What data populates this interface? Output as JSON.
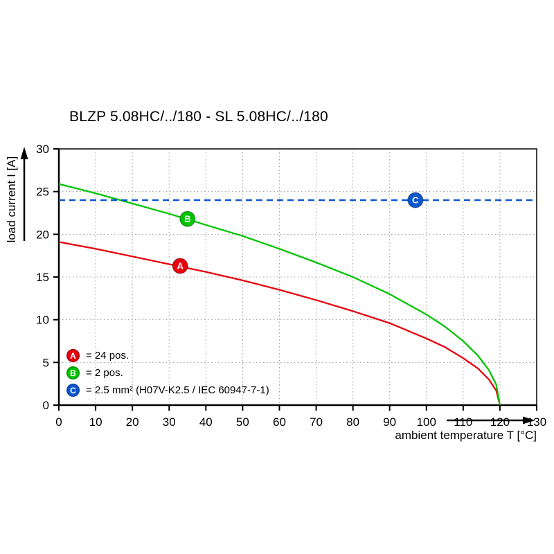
{
  "chart_data": {
    "type": "line",
    "title": "BLZP 5.08HC/../180 - SL 5.08HC/../180",
    "xlabel": "ambient temperature T [°C]",
    "ylabel": "load current I [A]",
    "xlim": [
      0,
      130
    ],
    "ylim": [
      0,
      30
    ],
    "xticks": [
      0,
      10,
      20,
      30,
      40,
      50,
      60,
      70,
      80,
      90,
      100,
      110,
      120,
      130
    ],
    "yticks": [
      0,
      5,
      10,
      15,
      20,
      25,
      30
    ],
    "grid": true,
    "legend_position": "inside bottom-left",
    "series": [
      {
        "name": "A",
        "label": "= 24 pos.",
        "color": "#e8000d",
        "style": "solid",
        "points": [
          [
            0,
            19.1
          ],
          [
            10,
            18.3
          ],
          [
            20,
            17.4
          ],
          [
            30,
            16.5
          ],
          [
            40,
            15.6
          ],
          [
            50,
            14.6
          ],
          [
            60,
            13.5
          ],
          [
            70,
            12.3
          ],
          [
            80,
            11.0
          ],
          [
            90,
            9.6
          ],
          [
            100,
            7.8
          ],
          [
            105,
            6.8
          ],
          [
            110,
            5.5
          ],
          [
            114,
            4.3
          ],
          [
            117,
            3.0
          ],
          [
            119,
            1.7
          ],
          [
            120,
            0
          ]
        ]
      },
      {
        "name": "B",
        "label": "= 2 pos.",
        "color": "#00c400",
        "style": "solid",
        "points": [
          [
            0,
            25.9
          ],
          [
            10,
            24.8
          ],
          [
            20,
            23.6
          ],
          [
            30,
            22.4
          ],
          [
            40,
            21.1
          ],
          [
            50,
            19.8
          ],
          [
            60,
            18.3
          ],
          [
            70,
            16.7
          ],
          [
            80,
            15.0
          ],
          [
            90,
            13.0
          ],
          [
            100,
            10.6
          ],
          [
            105,
            9.2
          ],
          [
            110,
            7.5
          ],
          [
            114,
            5.8
          ],
          [
            117,
            4.1
          ],
          [
            119,
            2.4
          ],
          [
            120,
            0
          ]
        ]
      },
      {
        "name": "C",
        "label": "= 2.5 mm² (H07V-K2.5 / IEC 60947-7-1)",
        "color": "#0b57d0",
        "style": "dashed",
        "points": [
          [
            0,
            24
          ],
          [
            130,
            24
          ]
        ]
      }
    ],
    "markers": [
      {
        "letter": "A",
        "x": 33,
        "y": 16.3,
        "color": "#e8000d"
      },
      {
        "letter": "B",
        "x": 35,
        "y": 21.8,
        "color": "#00c400"
      },
      {
        "letter": "C",
        "x": 97,
        "y": 24,
        "color": "#0b57d0"
      }
    ]
  }
}
